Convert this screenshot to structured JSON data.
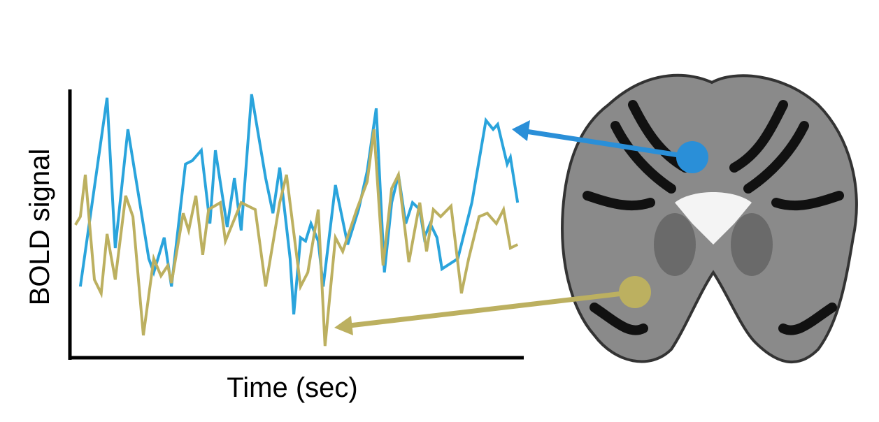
{
  "chart_data": {
    "type": "line",
    "x_label": "Time (sec)",
    "y_label": "BOLD signal",
    "xlim": [
      0,
      100
    ],
    "ylim": [
      0,
      100
    ],
    "series": [
      {
        "color": "#2aa4dc",
        "x": [
          2.3,
          8.2,
          10.0,
          12.8,
          17.4,
          18.5,
          20.8,
          22.4,
          25.5,
          27.0,
          29.0,
          30.9,
          32.1,
          34.7,
          36.3,
          37.8,
          40.1,
          43.2,
          44.8,
          46.3,
          48.6,
          49.4,
          50.9,
          52.0,
          53.2,
          54.8,
          55.9,
          58.6,
          61.3,
          63.7,
          65.6,
          67.6,
          69.4,
          71.0,
          72.5,
          74.1,
          75.6,
          77.2,
          78.2,
          79.5,
          81.0,
          82.1,
          85.6,
          88.7,
          91.8,
          93.4,
          94.4,
          96.5,
          97.2,
          98.8
        ],
        "values": [
          26.3,
          97.4,
          40.8,
          85.5,
          36.8,
          31.6,
          44.7,
          26.3,
          72.4,
          73.7,
          77.6,
          50,
          77.6,
          48.7,
          67.1,
          47.4,
          98.7,
          67.1,
          53.9,
          71.1,
          36.8,
          15.8,
          44.7,
          43.4,
          50,
          43.4,
          26.3,
          64.5,
          42.1,
          55.3,
          69.7,
          93.4,
          31.6,
          57.9,
          68.4,
          50,
          57.9,
          55.3,
          44.7,
          50,
          44.7,
          32.9,
          36.8,
          57.9,
          88.9,
          85.5,
          87.4,
          72.4,
          75,
          57.9
        ]
      },
      {
        "color": "#bcb060",
        "x": [
          1.2,
          2.3,
          3.4,
          5.4,
          6.9,
          8.2,
          10.0,
          12.3,
          13.9,
          16.2,
          18.5,
          20.1,
          21.6,
          22.4,
          25.0,
          26.2,
          27.8,
          29.3,
          30.6,
          33.2,
          34.3,
          37.8,
          40.9,
          43.2,
          46.3,
          47.8,
          50.9,
          52.5,
          54.8,
          56.3,
          57.4,
          58.6,
          60.2,
          63.3,
          65.6,
          67.1,
          69.1,
          71.0,
          72.5,
          74.8,
          77.2,
          78.7,
          80.2,
          81.8,
          84.1,
          86.4,
          88.0,
          90.3,
          92.1,
          94.1,
          95.7,
          97.2,
          98.8
        ],
        "values": [
          49.5,
          52.6,
          68.4,
          28.9,
          23.7,
          46.1,
          28.9,
          60.5,
          52.6,
          7.9,
          36.8,
          30.3,
          34.2,
          27.6,
          53.9,
          47.4,
          60.5,
          38.2,
          55.3,
          57.9,
          43.4,
          57.9,
          55.3,
          26.3,
          57.9,
          68.4,
          26.3,
          31.6,
          55.3,
          3.9,
          23.7,
          44.7,
          39.5,
          55.3,
          65.8,
          85.5,
          34.2,
          63.2,
          68.4,
          35.5,
          57.9,
          39.5,
          55.3,
          52.6,
          56.6,
          23.7,
          36.8,
          52.6,
          53.9,
          50,
          55.3,
          40.8,
          42.1
        ]
      }
    ]
  }
}
